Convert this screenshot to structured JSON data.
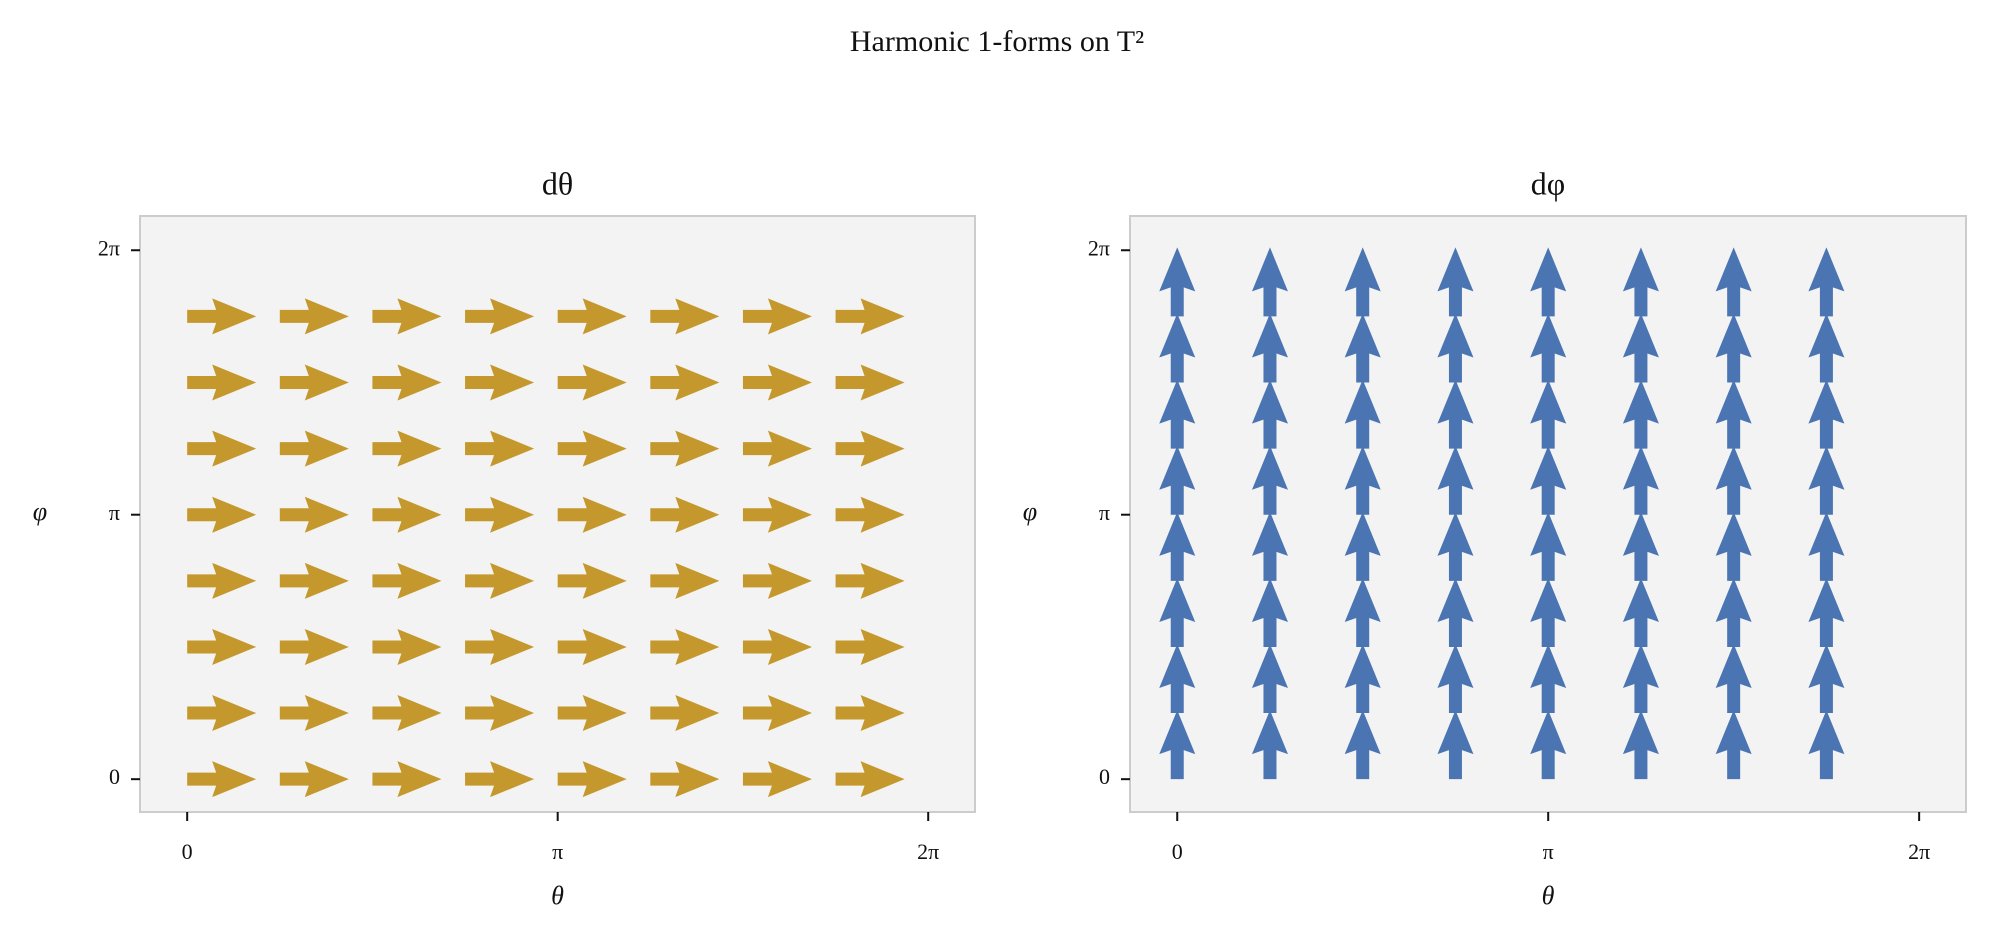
{
  "title": "Harmonic 1-forms on T²",
  "chart_data": [
    {
      "type": "quiver",
      "title": "dθ",
      "xlabel": "θ",
      "ylabel": "φ",
      "color": "#c4982c",
      "x": [
        0,
        0.7854,
        1.5708,
        2.3562,
        3.1416,
        3.927,
        4.7124,
        5.4978
      ],
      "y": [
        0,
        0.7854,
        1.5708,
        2.3562,
        3.1416,
        3.927,
        4.7124,
        5.4978
      ],
      "u": [
        [
          1,
          1,
          1,
          1,
          1,
          1,
          1,
          1
        ],
        [
          1,
          1,
          1,
          1,
          1,
          1,
          1,
          1
        ],
        [
          1,
          1,
          1,
          1,
          1,
          1,
          1,
          1
        ],
        [
          1,
          1,
          1,
          1,
          1,
          1,
          1,
          1
        ],
        [
          1,
          1,
          1,
          1,
          1,
          1,
          1,
          1
        ],
        [
          1,
          1,
          1,
          1,
          1,
          1,
          1,
          1
        ],
        [
          1,
          1,
          1,
          1,
          1,
          1,
          1,
          1
        ],
        [
          1,
          1,
          1,
          1,
          1,
          1,
          1,
          1
        ]
      ],
      "v": [
        [
          0,
          0,
          0,
          0,
          0,
          0,
          0,
          0
        ],
        [
          0,
          0,
          0,
          0,
          0,
          0,
          0,
          0
        ],
        [
          0,
          0,
          0,
          0,
          0,
          0,
          0,
          0
        ],
        [
          0,
          0,
          0,
          0,
          0,
          0,
          0,
          0
        ],
        [
          0,
          0,
          0,
          0,
          0,
          0,
          0,
          0
        ],
        [
          0,
          0,
          0,
          0,
          0,
          0,
          0,
          0
        ],
        [
          0,
          0,
          0,
          0,
          0,
          0,
          0,
          0
        ],
        [
          0,
          0,
          0,
          0,
          0,
          0,
          0,
          0
        ]
      ],
      "xlim": [
        -0.4,
        6.68
      ],
      "ylim": [
        -0.39,
        6.69
      ],
      "xticks": [
        0,
        {
          "value": 3.1416,
          "label": "π"
        },
        {
          "value": 6.2832,
          "label": "2π"
        }
      ],
      "yticks": [
        0,
        {
          "value": 3.1416,
          "label": "π"
        },
        {
          "value": 6.2832,
          "label": "2π"
        }
      ]
    },
    {
      "type": "quiver",
      "title": "dφ",
      "xlabel": "θ",
      "ylabel": "φ",
      "color": "#4a74b2",
      "x": [
        0,
        0.7854,
        1.5708,
        2.3562,
        3.1416,
        3.927,
        4.7124,
        5.4978
      ],
      "y": [
        0,
        0.7854,
        1.5708,
        2.3562,
        3.1416,
        3.927,
        4.7124,
        5.4978
      ],
      "u": [
        [
          0,
          0,
          0,
          0,
          0,
          0,
          0,
          0
        ],
        [
          0,
          0,
          0,
          0,
          0,
          0,
          0,
          0
        ],
        [
          0,
          0,
          0,
          0,
          0,
          0,
          0,
          0
        ],
        [
          0,
          0,
          0,
          0,
          0,
          0,
          0,
          0
        ],
        [
          0,
          0,
          0,
          0,
          0,
          0,
          0,
          0
        ],
        [
          0,
          0,
          0,
          0,
          0,
          0,
          0,
          0
        ],
        [
          0,
          0,
          0,
          0,
          0,
          0,
          0,
          0
        ],
        [
          0,
          0,
          0,
          0,
          0,
          0,
          0,
          0
        ]
      ],
      "v": [
        [
          1,
          1,
          1,
          1,
          1,
          1,
          1,
          1
        ],
        [
          1,
          1,
          1,
          1,
          1,
          1,
          1,
          1
        ],
        [
          1,
          1,
          1,
          1,
          1,
          1,
          1,
          1
        ],
        [
          1,
          1,
          1,
          1,
          1,
          1,
          1,
          1
        ],
        [
          1,
          1,
          1,
          1,
          1,
          1,
          1,
          1
        ],
        [
          1,
          1,
          1,
          1,
          1,
          1,
          1,
          1
        ],
        [
          1,
          1,
          1,
          1,
          1,
          1,
          1,
          1
        ],
        [
          1,
          1,
          1,
          1,
          1,
          1,
          1,
          1
        ]
      ],
      "xlim": [
        -0.4,
        6.68
      ],
      "ylim": [
        -0.39,
        6.69
      ],
      "xticks": [
        0,
        {
          "value": 3.1416,
          "label": "π"
        },
        {
          "value": 6.2832,
          "label": "2π"
        }
      ],
      "yticks": [
        0,
        {
          "value": 3.1416,
          "label": "π"
        },
        {
          "value": 6.2832,
          "label": "2π"
        }
      ]
    }
  ]
}
